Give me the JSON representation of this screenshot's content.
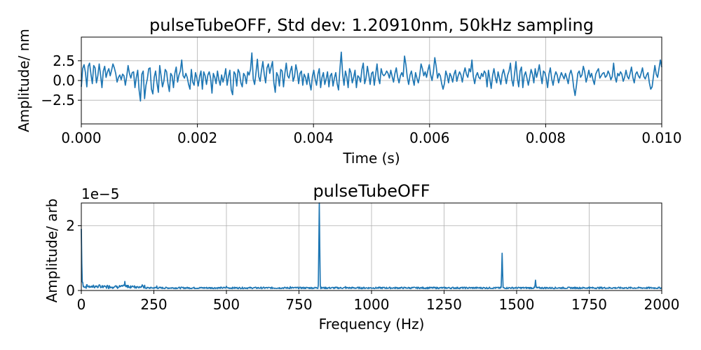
{
  "chart_data": [
    {
      "type": "line",
      "title": "pulseTubeOFF, Std dev: 1.20910nm, 50kHz sampling",
      "xlabel": "Time (s)",
      "ylabel": "Amplitude/ nm",
      "xlim": [
        0,
        0.01
      ],
      "ylim": [
        -5.5,
        5.5
      ],
      "xticks": [
        0.0,
        0.002,
        0.004,
        0.006,
        0.008,
        0.01
      ],
      "xtick_labels": [
        "0.000",
        "0.002",
        "0.004",
        "0.006",
        "0.008",
        "0.010"
      ],
      "yticks": [
        -2.5,
        0.0,
        2.5
      ],
      "ytick_labels": [
        "−2.5",
        "0.0",
        "2.5"
      ],
      "grid": true,
      "series": [
        {
          "color": "#1f77b4",
          "x_start": 0.0,
          "x_step": 2e-05,
          "values": [
            -0.8,
            1.5,
            2.0,
            1.0,
            -0.8,
            1.8,
            2.2,
            0.8,
            -0.4,
            1.9,
            1.6,
            -0.3,
            0.6,
            2.1,
            0.7,
            -0.9,
            1.2,
            1.8,
            0.4,
            1.1,
            1.5,
            0.6,
            1.3,
            2.1,
            1.6,
            0.9,
            -0.2,
            0.4,
            0.7,
            0.1,
            0.8,
            0.6,
            -0.6,
            0.5,
            1.9,
            0.9,
            0.3,
            1.0,
            1.1,
            -0.9,
            0.4,
            1.3,
            -1.2,
            -2.6,
            0.8,
            1.2,
            -2.3,
            -0.6,
            0.2,
            1.5,
            1.6,
            -1.1,
            -1.7,
            0.4,
            1.2,
            -0.3,
            -1.5,
            1.9,
            0.6,
            -0.8,
            -0.1,
            1.4,
            1.1,
            -0.4,
            -1.4,
            0.9,
            0.6,
            -0.9,
            0.9,
            1.7,
            -0.2,
            0.7,
            1.2,
            2.6,
            0.6,
            0.3,
            0.9,
            0.4,
            -0.5,
            -1.1,
            1.4,
            -0.2,
            -0.6,
            1.0,
            0.3,
            -0.7,
            0.5,
            1.2,
            -1.1,
            1.1,
            0.6,
            -0.5,
            0.7,
            1.1,
            0.3,
            -1.6,
            0.9,
            0.4,
            -0.4,
            1.2,
            0.1,
            -0.6,
            0.7,
            -0.2,
            0.5,
            1.5,
            -0.6,
            0.5,
            1.3,
            -1.2,
            -1.8,
            1.1,
            0.8,
            -0.7,
            1.4,
            1.0,
            -0.3,
            -0.8,
            0.9,
            0.6,
            -0.4,
            1.1,
            0.7,
            1.4,
            3.5,
            0.2,
            -0.5,
            1.0,
            2.7,
            0.5,
            -0.1,
            1.3,
            2.4,
            0.8,
            -0.3,
            1.6,
            2.1,
            0.9,
            1.7,
            2.4,
            -0.3,
            -1.5,
            1.0,
            0.6,
            -0.7,
            1.4,
            1.2,
            -0.8,
            0.9,
            2.2,
            0.6,
            0.3,
            1.2,
            1.8,
            -0.1,
            0.5,
            2.0,
            1.1,
            -0.4,
            0.9,
            1.2,
            -0.6,
            0.8,
            0.4,
            -0.5,
            0.9,
            -0.3,
            -1.2,
            0.5,
            1.3,
            0.2,
            -0.6,
            0.8,
            1.5,
            -0.9,
            0.4,
            1.0,
            -0.5,
            0.2,
            1.1,
            -0.8,
            0.6,
            0.9,
            -0.7,
            0.3,
            1.0,
            -0.4,
            -1.2,
            1.4,
            3.6,
            0.8,
            -0.6,
            1.2,
            0.5,
            -0.9,
            1.5,
            1.0,
            -0.3,
            0.4,
            1.3,
            -0.9,
            0.6,
            0.4,
            -0.2,
            1.4,
            2.2,
            -0.4,
            0.3,
            1.8,
            0.7,
            -0.5,
            0.9,
            1.1,
            -0.6,
            0.8,
            2.1,
            0.3,
            -0.4,
            1.5,
            0.8,
            0.6,
            0.8,
            1.2,
            0.9,
            0.3,
            1.3,
            0.5,
            -0.2,
            0.9,
            1.6,
            0.4,
            -0.3,
            0.6,
            1.0,
            0.5,
            3.1,
            2.0,
            0.4,
            -0.5,
            0.7,
            1.2,
            0.2,
            -0.6,
            1.0,
            0.3,
            -0.3,
            0.6,
            2.1,
            1.5,
            0.6,
            1.1,
            0.4,
            1.3,
            2.0,
            0.7,
            0.0,
            1.1,
            2.9,
            1.8,
            0.3,
            0.9,
            0.6,
            -0.4,
            -1.1,
            -0.4,
            1.2,
            0.6,
            -0.3,
            0.9,
            0.5,
            -0.2,
            0.8,
            1.3,
            -0.1,
            0.6,
            1.1,
            0.7,
            -0.2,
            0.9,
            1.6,
            0.8,
            0.4,
            1.5,
            1.1,
            2.6,
            0.5,
            -0.4,
            0.6,
            1.0,
            0.4,
            0.2,
            0.9,
            0.5,
            1.2,
            0.9,
            -0.8,
            1.3,
            0.2,
            -1.0,
            0.6,
            1.5,
            0.4,
            -0.3,
            1.1,
            0.3,
            -0.5,
            0.8,
            1.4,
            0.6,
            -0.4,
            0.7,
            1.2,
            2.2,
            0.1,
            -0.7,
            0.9,
            2.4,
            0.3,
            -0.8,
            1.2,
            1.7,
            -0.9,
            0.6,
            1.1,
            0.3,
            -0.6,
            0.4,
            1.4,
            0.8,
            -0.3,
            1.5,
            0.4,
            1.1,
            2.0,
            0.7,
            -0.4,
            1.2,
            1.0,
            0.3,
            -0.9,
            0.8,
            1.6,
            0.2,
            -0.6,
            0.5,
            1.1,
            0.7,
            -0.3,
            0.4,
            1.0,
            0.6,
            0.2,
            0.9,
            0.3,
            -0.4,
            0.8,
            1.3,
            0.6,
            -0.9,
            -1.9,
            -0.6,
            0.9,
            1.2,
            0.4,
            0.7,
            1.8,
            1.1,
            -0.2,
            0.5,
            1.3,
            0.4,
            0.9,
            0.1,
            -0.5,
            0.8,
            1.2,
            1.5,
            0.3,
            0.6,
            0.9,
            1.0,
            0.4,
            0.6,
            1.2,
            0.8,
            0.1,
            0.5,
            2.2,
            0.5,
            -0.2,
            0.9,
            0.6,
            1.1,
            0.8,
            -0.1,
            0.4,
            1.3,
            0.5,
            0.2,
            0.9,
            1.7,
            0.4,
            -0.3,
            0.8,
            1.1,
            0.6,
            0.3,
            0.9,
            1.6,
            0.5,
            0.2,
            0.7,
            1.0,
            -0.3,
            -1.1,
            -0.8,
            0.6,
            1.9,
            0.8,
            0.4,
            1.5,
            2.6,
            1.7
          ]
        }
      ]
    },
    {
      "type": "line",
      "title": "pulseTubeOFF",
      "xlabel": "Frequency (Hz)",
      "ylabel": "Amplitude/ arb",
      "offset_text": "1e−5",
      "xlim": [
        0,
        2000
      ],
      "ylim": [
        0,
        2.7
      ],
      "y_scale_factor": 1e-05,
      "xticks": [
        0,
        250,
        500,
        750,
        1000,
        1250,
        1500,
        1750,
        2000
      ],
      "xtick_labels": [
        "0",
        "250",
        "500",
        "750",
        "1000",
        "1250",
        "1500",
        "1750",
        "2000"
      ],
      "yticks": [
        0,
        2
      ],
      "ytick_labels": [
        "0",
        "2"
      ],
      "grid": true,
      "series": [
        {
          "color": "#1f77b4",
          "baseline": 0.08,
          "baseline_noise": 0.05,
          "peaks": [
            {
              "x": 0,
              "y": 1.9
            },
            {
              "x": 2,
              "y": 0.9
            },
            {
              "x": 5,
              "y": 0.25
            },
            {
              "x": 20,
              "y": 0.18
            },
            {
              "x": 42,
              "y": 0.17
            },
            {
              "x": 60,
              "y": 0.15
            },
            {
              "x": 150,
              "y": 0.28
            },
            {
              "x": 260,
              "y": 0.14
            },
            {
              "x": 500,
              "y": 0.13
            },
            {
              "x": 720,
              "y": 0.12
            },
            {
              "x": 820,
              "y": 2.7
            },
            {
              "x": 910,
              "y": 0.12
            },
            {
              "x": 1450,
              "y": 1.15
            },
            {
              "x": 1565,
              "y": 0.32
            },
            {
              "x": 1750,
              "y": 0.11
            }
          ]
        }
      ]
    }
  ]
}
